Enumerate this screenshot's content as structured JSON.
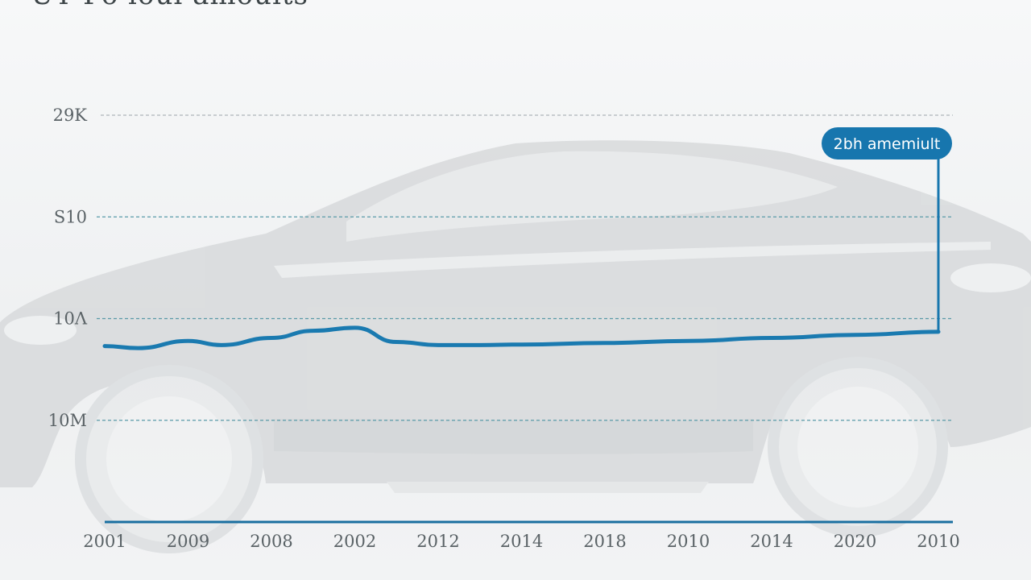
{
  "colors": {
    "line": "#1a7ab0",
    "grid": "#5a9aa8",
    "top_grid": "#b9bfc3",
    "axis": "#1a6fa0",
    "callout": "#1776ae",
    "car_body": "#d7d9db",
    "car_shadow": "#cfd2d4",
    "wheel": "#e9ebec"
  },
  "chart_data": {
    "type": "line",
    "title": "",
    "xlabel": "",
    "ylabel": "",
    "x_tick_labels": [
      "2001",
      "2009",
      "2008",
      "2002",
      "2012",
      "2014",
      "2018",
      "2010",
      "2014",
      "2020",
      "2010"
    ],
    "y_tick_labels": [
      "29K",
      "S10",
      "10Λ",
      "10M"
    ],
    "series": [
      {
        "x": [
          0,
          0.4,
          1.0,
          1.4,
          2.0,
          2.5,
          3.0,
          3.5,
          4.0,
          4.5,
          5.0,
          6.0,
          7.0,
          8.0,
          9.0,
          10.0
        ],
        "y": [
          1.73,
          1.71,
          1.78,
          1.74,
          1.81,
          1.88,
          1.91,
          1.77,
          1.74,
          1.74,
          1.745,
          1.76,
          1.78,
          1.81,
          1.84,
          1.87
        ]
      }
    ],
    "annotations": [
      {
        "text": "2bh amemiult",
        "x": 10.0
      }
    ],
    "grid": true,
    "legend": "none"
  }
}
